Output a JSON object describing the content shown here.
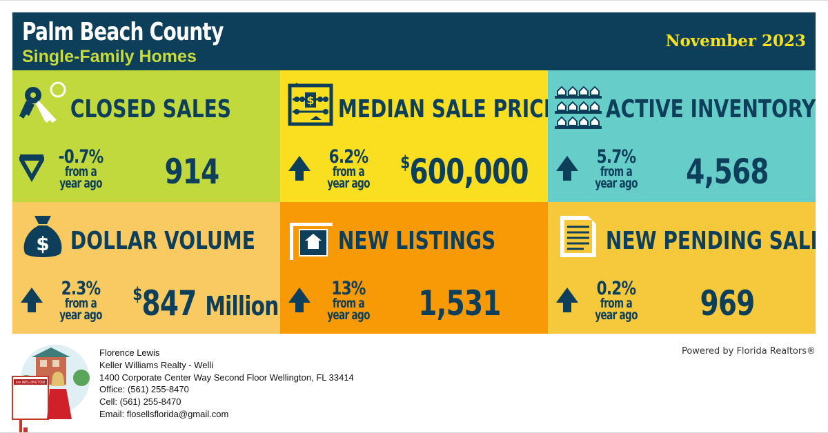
{
  "header": {
    "title": "Palm Beach County",
    "subtitle": "Single-Family Homes",
    "date": "November 2023"
  },
  "metrics": [
    {
      "label": "CLOSED SALES",
      "icon": "keys-icon",
      "direction": "down",
      "change": "-0.7%",
      "change_note_1": "from a",
      "change_note_2": "year ago",
      "value": "914",
      "value_prefix": "",
      "value_unit": "",
      "color": "#c1d93d"
    },
    {
      "label": "MEDIAN SALE PRICE",
      "icon": "abacus-icon",
      "direction": "up",
      "change": "6.2%",
      "change_note_1": "from a",
      "change_note_2": "year ago",
      "value": "600,000",
      "value_prefix": "$",
      "value_unit": "",
      "color": "#fadf20"
    },
    {
      "label": "ACTIVE INVENTORY",
      "icon": "houses-shelf-icon",
      "direction": "up",
      "change": "5.7%",
      "change_note_1": "from a",
      "change_note_2": "year ago",
      "value": "4,568",
      "value_prefix": "",
      "value_unit": "",
      "color": "#66cdc9"
    },
    {
      "label": "DOLLAR VOLUME",
      "icon": "money-bag-icon",
      "direction": "up",
      "change": "2.3%",
      "change_note_1": "from a",
      "change_note_2": "year ago",
      "value": "847",
      "value_prefix": "$",
      "value_unit": "Million",
      "color": "#f9c962"
    },
    {
      "label": "NEW LISTINGS",
      "icon": "house-sign-icon",
      "direction": "up",
      "change": "13%",
      "change_note_1": "from a",
      "change_note_2": "year ago",
      "value": "1,531",
      "value_prefix": "",
      "value_unit": "",
      "color": "#f79a06"
    },
    {
      "label": "NEW PENDING SALES",
      "icon": "document-icon",
      "direction": "up",
      "change": "0.2%",
      "change_note_1": "from a",
      "change_note_2": "year ago",
      "value": "969",
      "value_prefix": "",
      "value_unit": "",
      "color": "#f6c93d"
    }
  ],
  "agent": {
    "name": "Florence Lewis",
    "company": "Keller Williams Realty - Welli",
    "address": "1400 Corporate Center Way Second Floor Wellington, FL 33414",
    "office": "Office: (561) 255-8470",
    "cell": "Cell: (561) 255-8470",
    "email": "Email: flosellsflorida@gmail.com",
    "sign_text": "kw WELLINGTON"
  },
  "footer": {
    "powered_by": "Powered by Florida Realtors®"
  },
  "colors": {
    "navy": "#0d3f5a",
    "lime": "#c9dc3c",
    "gold": "#f6e11b"
  }
}
